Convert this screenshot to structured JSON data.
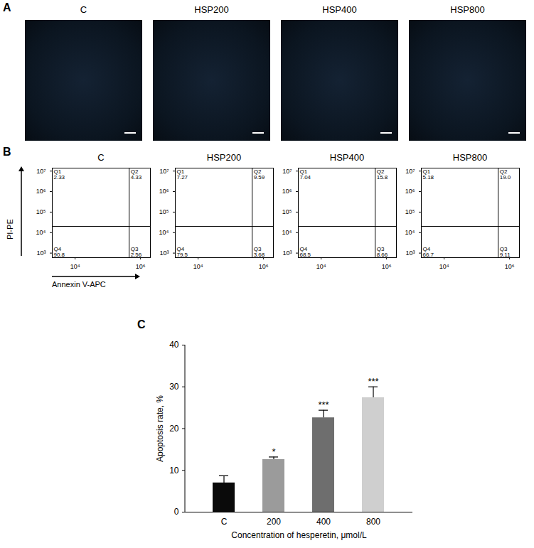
{
  "images": {
    "panel": "A",
    "titles": [
      "C",
      "HSP200",
      "HSP400",
      "HSP800"
    ]
  },
  "chart_data": [
    {
      "panel": "B",
      "type": "quadrant",
      "x_label": "Annexin V-APC",
      "y_label": "PI-PE",
      "log": true,
      "xlim": [
        2000,
        2000000
      ],
      "ylim": [
        600,
        14000000
      ],
      "xticks": [
        {
          "value": 10000,
          "label": "10⁴"
        },
        {
          "value": 1000000,
          "label": "10⁶"
        }
      ],
      "yticks": [
        {
          "value": 1000,
          "label": "10³"
        },
        {
          "value": 10000,
          "label": "10⁴"
        },
        {
          "value": 100000,
          "label": "10⁵"
        },
        {
          "value": 1000000,
          "label": "10⁶"
        },
        {
          "value": 10000000,
          "label": "10⁷"
        }
      ],
      "gate": {
        "x": 450000,
        "y": 20000
      },
      "plots": [
        {
          "title": "C",
          "quadrants": [
            {
              "name": "Q1",
              "value": 2.33
            },
            {
              "name": "Q2",
              "value": 4.33
            },
            {
              "name": "Q3",
              "value": 2.56
            },
            {
              "name": "Q4",
              "value": 90.8
            }
          ]
        },
        {
          "title": "HSP200",
          "quadrants": [
            {
              "name": "Q1",
              "value": 7.27
            },
            {
              "name": "Q2",
              "value": 9.59
            },
            {
              "name": "Q3",
              "value": 3.68
            },
            {
              "name": "Q4",
              "value": 79.5
            }
          ]
        },
        {
          "title": "HSP400",
          "quadrants": [
            {
              "name": "Q1",
              "value": 7.04
            },
            {
              "name": "Q2",
              "value": 15.8
            },
            {
              "name": "Q3",
              "value": 8.66
            },
            {
              "name": "Q4",
              "value": 68.5
            }
          ]
        },
        {
          "title": "HSP800",
          "quadrants": [
            {
              "name": "Q1",
              "value": 5.18
            },
            {
              "name": "Q2",
              "value": 19.0,
              "label": "19.0"
            },
            {
              "name": "Q3",
              "value": 9.11
            },
            {
              "name": "Q4",
              "value": 66.7
            }
          ]
        }
      ]
    },
    {
      "panel": "C",
      "type": "bar",
      "x_label": "Concentration of hesperetin, μmol/L",
      "y_label": "Apoptosis rate, %",
      "categories": [
        "C",
        "200",
        "400",
        "800"
      ],
      "values": [
        7.0,
        12.6,
        22.6,
        27.4
      ],
      "errors": [
        1.7,
        0.6,
        1.8,
        2.6
      ],
      "annotations": [
        null,
        "*",
        "***",
        "***"
      ],
      "colors": [
        "#0a0a0a",
        "#9b9b9b",
        "#6e6e6e",
        "#cfcfcf"
      ],
      "ylim": [
        0,
        40
      ],
      "yticks": [
        0,
        10,
        20,
        30,
        40
      ]
    }
  ]
}
